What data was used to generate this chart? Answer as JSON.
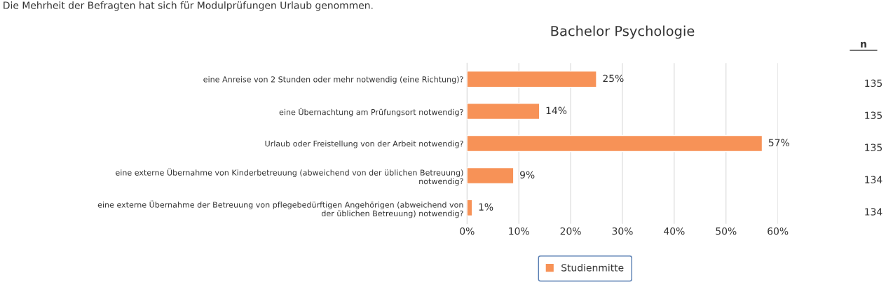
{
  "chart_data": {
    "type": "bar",
    "orientation": "horizontal",
    "title": "Bachelor Psychologie",
    "categories": [
      "eine Anreise von 2 Stunden oder mehr notwendig (eine Richtung)?",
      "eine Übernachtung am Prüfungsort notwendig?",
      "Urlaub oder Freistellung von der Arbeit notwendig?",
      "eine externe Übernahme von Kinderbetreuung (abweichend von der üblichen Betreuung) notwendig?",
      "eine externe Übernahme der Betreuung von pflegebedürftigen Angehörigen (abweichend von der üblichen Betreuung) notwendig?"
    ],
    "series": [
      {
        "name": "Studienmitte",
        "color": "#f79257",
        "values": [
          25,
          14,
          57,
          9,
          1
        ],
        "value_labels": [
          "25%",
          "14%",
          "57%",
          "9%",
          "1%"
        ]
      }
    ],
    "xlim": [
      0,
      60
    ],
    "xticks": [
      {
        "value": 0,
        "label": "0%"
      },
      {
        "value": 10,
        "label": "10%"
      },
      {
        "value": 20,
        "label": "20%"
      },
      {
        "value": 30,
        "label": "30%"
      },
      {
        "value": 40,
        "label": "40%"
      },
      {
        "value": 50,
        "label": "50%"
      },
      {
        "value": 60,
        "label": "60%"
      }
    ],
    "grid": "x",
    "legend": "bottom",
    "annotations": [
      "Die Mehrheit der Befragten hat sich für Modulprüfungen Urlaub genommen.",
      "n",
      "135",
      "135",
      "135",
      "134",
      "134"
    ]
  }
}
